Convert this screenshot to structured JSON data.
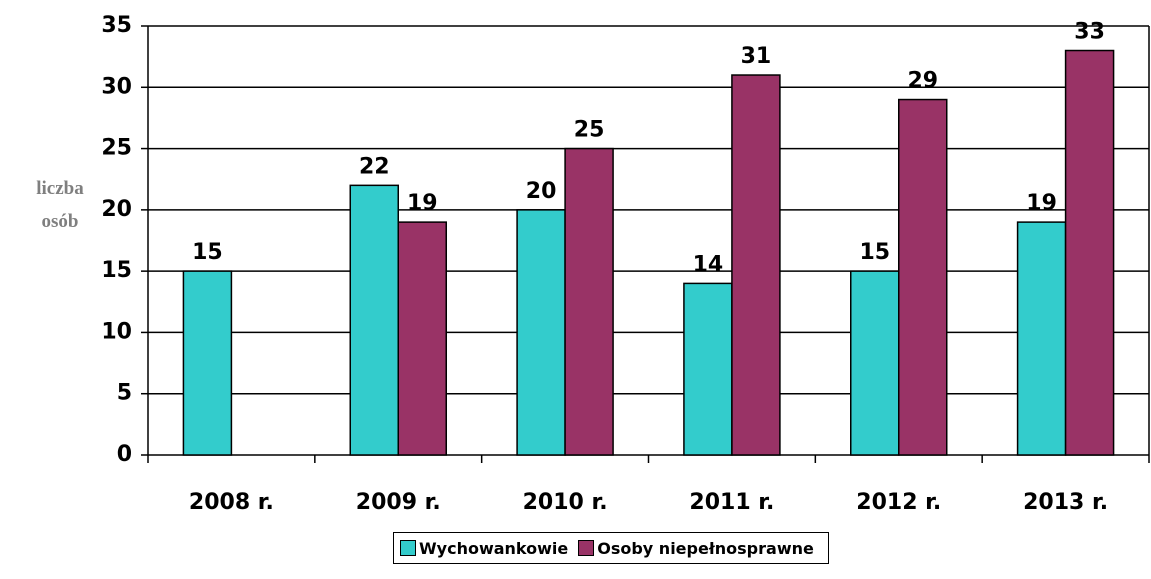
{
  "chart_data": {
    "type": "bar",
    "y_label": "liczba osób",
    "categories": [
      "2008 r.",
      "2009 r.",
      "2010 r.",
      "2011 r.",
      "2012 r.",
      "2013 r."
    ],
    "series": [
      {
        "name": "Wychowankowie",
        "color": "#33cccc",
        "values": [
          15,
          22,
          20,
          14,
          15,
          19
        ]
      },
      {
        "name": "Osoby niepełnosprawne",
        "color": "#993366",
        "values": [
          null,
          19,
          25,
          31,
          29,
          33
        ]
      }
    ],
    "ylim": [
      0,
      35
    ],
    "yticks": [
      0,
      5,
      10,
      15,
      20,
      25,
      30,
      35
    ],
    "grid": true,
    "legend": "bottom"
  }
}
